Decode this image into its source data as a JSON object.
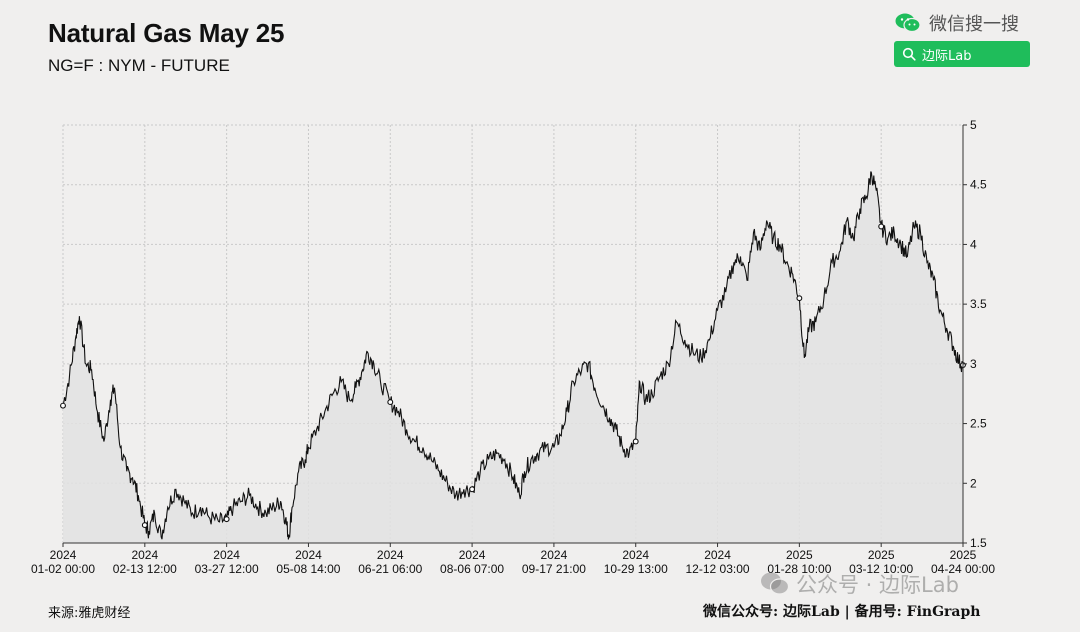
{
  "header": {
    "title": "Natural Gas May 25",
    "subtitle": "NG=F : NYM - FUTURE"
  },
  "wechat": {
    "brand": "微信搜一搜",
    "search_label": "边际Lab",
    "accent": "#1fbd5b"
  },
  "footer": {
    "source": "来源:雅虎财经",
    "credit": "微信公众号: 边际Lab  |  备用号: FinGraph",
    "watermark": "公众号 · 边际Lab"
  },
  "chart_data": {
    "type": "area",
    "y_axis": {
      "position": "right",
      "range": [
        1.5,
        5
      ],
      "ticks": [
        "1.5",
        "2",
        "2.5",
        "3",
        "3.5",
        "4",
        "4.5",
        "5"
      ]
    },
    "x_axis": {
      "ticks": [
        {
          "year": "2024",
          "label": "01-02 00:00"
        },
        {
          "year": "2024",
          "label": "02-13 12:00"
        },
        {
          "year": "2024",
          "label": "03-27 12:00"
        },
        {
          "year": "2024",
          "label": "05-08 14:00"
        },
        {
          "year": "2024",
          "label": "06-21 06:00"
        },
        {
          "year": "2024",
          "label": "08-06 07:00"
        },
        {
          "year": "2024",
          "label": "09-17 21:00"
        },
        {
          "year": "2024",
          "label": "10-29 13:00"
        },
        {
          "year": "2024",
          "label": "12-12 03:00"
        },
        {
          "year": "2025",
          "label": "01-28 10:00"
        },
        {
          "year": "2025",
          "label": "03-12 10:00"
        },
        {
          "year": "2025",
          "label": "04-24 00:00"
        }
      ]
    },
    "grid": true,
    "line_color": "#111111",
    "fill_color": "#e2e2e2",
    "series_points": [
      [
        0,
        2.65
      ],
      [
        0.08,
        2.9
      ],
      [
        0.15,
        3.2
      ],
      [
        0.2,
        3.4
      ],
      [
        0.28,
        3.0
      ],
      [
        0.35,
        2.95
      ],
      [
        0.42,
        2.6
      ],
      [
        0.5,
        2.35
      ],
      [
        0.58,
        2.7
      ],
      [
        0.63,
        2.8
      ],
      [
        0.7,
        2.3
      ],
      [
        0.78,
        2.1
      ],
      [
        0.85,
        2.05
      ],
      [
        0.92,
        1.9
      ],
      [
        1.0,
        1.65
      ],
      [
        1.05,
        1.6
      ],
      [
        1.12,
        1.75
      ],
      [
        1.2,
        1.55
      ],
      [
        1.28,
        1.8
      ],
      [
        1.38,
        1.95
      ],
      [
        1.48,
        1.85
      ],
      [
        1.58,
        1.75
      ],
      [
        1.68,
        1.8
      ],
      [
        1.78,
        1.72
      ],
      [
        1.9,
        1.68
      ],
      [
        2.0,
        1.7
      ],
      [
        2.08,
        1.8
      ],
      [
        2.18,
        1.85
      ],
      [
        2.28,
        1.9
      ],
      [
        2.38,
        1.8
      ],
      [
        2.48,
        1.75
      ],
      [
        2.58,
        1.8
      ],
      [
        2.66,
        1.85
      ],
      [
        2.72,
        1.7
      ],
      [
        2.76,
        1.55
      ],
      [
        2.8,
        1.8
      ],
      [
        2.88,
        2.1
      ],
      [
        2.96,
        2.2
      ],
      [
        3.0,
        2.3
      ],
      [
        3.1,
        2.45
      ],
      [
        3.2,
        2.6
      ],
      [
        3.3,
        2.75
      ],
      [
        3.4,
        2.85
      ],
      [
        3.5,
        2.7
      ],
      [
        3.58,
        2.8
      ],
      [
        3.66,
        2.95
      ],
      [
        3.72,
        3.1
      ],
      [
        3.8,
        3.0
      ],
      [
        3.88,
        2.85
      ],
      [
        4.0,
        2.68
      ],
      [
        4.1,
        2.6
      ],
      [
        4.2,
        2.45
      ],
      [
        4.3,
        2.35
      ],
      [
        4.4,
        2.3
      ],
      [
        4.5,
        2.2
      ],
      [
        4.6,
        2.1
      ],
      [
        4.7,
        2.0
      ],
      [
        4.8,
        1.9
      ],
      [
        4.9,
        1.95
      ],
      [
        5.0,
        1.95
      ],
      [
        5.1,
        2.1
      ],
      [
        5.2,
        2.2
      ],
      [
        5.3,
        2.25
      ],
      [
        5.4,
        2.2
      ],
      [
        5.5,
        2.05
      ],
      [
        5.58,
        1.9
      ],
      [
        5.64,
        2.1
      ],
      [
        5.72,
        2.2
      ],
      [
        5.8,
        2.25
      ],
      [
        5.9,
        2.3
      ],
      [
        6.0,
        2.3
      ],
      [
        6.08,
        2.4
      ],
      [
        6.16,
        2.6
      ],
      [
        6.24,
        2.85
      ],
      [
        6.34,
        2.95
      ],
      [
        6.42,
        3.0
      ],
      [
        6.5,
        2.8
      ],
      [
        6.6,
        2.65
      ],
      [
        6.68,
        2.55
      ],
      [
        6.76,
        2.45
      ],
      [
        6.84,
        2.3
      ],
      [
        6.92,
        2.25
      ],
      [
        7.0,
        2.35
      ],
      [
        7.05,
        2.85
      ],
      [
        7.12,
        2.7
      ],
      [
        7.2,
        2.75
      ],
      [
        7.3,
        2.9
      ],
      [
        7.4,
        3.0
      ],
      [
        7.5,
        3.35
      ],
      [
        7.6,
        3.2
      ],
      [
        7.7,
        3.1
      ],
      [
        7.8,
        3.05
      ],
      [
        7.9,
        3.2
      ],
      [
        8.0,
        3.45
      ],
      [
        8.1,
        3.6
      ],
      [
        8.2,
        3.85
      ],
      [
        8.28,
        3.9
      ],
      [
        8.36,
        3.7
      ],
      [
        8.44,
        4.1
      ],
      [
        8.52,
        3.95
      ],
      [
        8.6,
        4.2
      ],
      [
        8.68,
        4.05
      ],
      [
        8.76,
        4.0
      ],
      [
        8.84,
        3.85
      ],
      [
        8.92,
        3.75
      ],
      [
        9.0,
        3.55
      ],
      [
        9.06,
        3.05
      ],
      [
        9.12,
        3.3
      ],
      [
        9.2,
        3.35
      ],
      [
        9.3,
        3.55
      ],
      [
        9.4,
        3.85
      ],
      [
        9.5,
        3.95
      ],
      [
        9.58,
        4.2
      ],
      [
        9.66,
        4.05
      ],
      [
        9.74,
        4.3
      ],
      [
        9.82,
        4.4
      ],
      [
        9.88,
        4.6
      ],
      [
        9.94,
        4.45
      ],
      [
        10.0,
        4.15
      ],
      [
        10.08,
        4.05
      ],
      [
        10.16,
        4.1
      ],
      [
        10.24,
        4.0
      ],
      [
        10.32,
        3.9
      ],
      [
        10.4,
        4.15
      ],
      [
        10.48,
        4.1
      ],
      [
        10.56,
        3.85
      ],
      [
        10.64,
        3.7
      ],
      [
        10.72,
        3.45
      ],
      [
        10.8,
        3.3
      ],
      [
        10.88,
        3.15
      ],
      [
        10.95,
        3.02
      ],
      [
        11.0,
        2.99
      ]
    ],
    "markers": [
      [
        0,
        2.65
      ],
      [
        1.0,
        1.65
      ],
      [
        2.0,
        1.7
      ],
      [
        4.0,
        2.68
      ],
      [
        5.0,
        1.95
      ],
      [
        7.0,
        2.35
      ],
      [
        9.0,
        3.55
      ],
      [
        10.0,
        4.15
      ],
      [
        11.0,
        2.99
      ]
    ]
  }
}
